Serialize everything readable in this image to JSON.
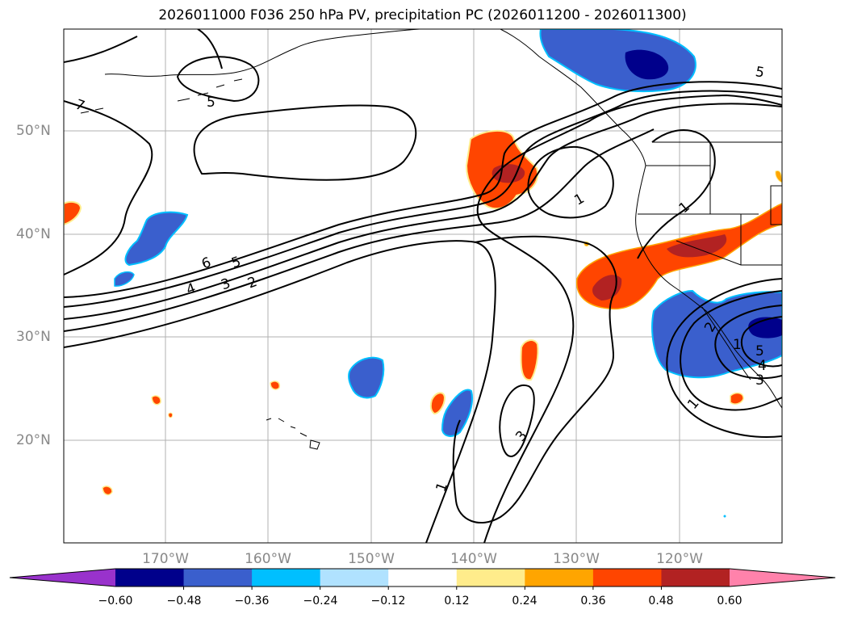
{
  "title": "2026011000 F036 250 hPa PV, precipitation PC (2026011200 - 2026011300)",
  "axes": {
    "lat_labels": [
      "50°N",
      "40°N",
      "30°N",
      "20°N"
    ],
    "lon_labels": [
      "170°W",
      "160°W",
      "150°W",
      "140°W",
      "130°W",
      "120°W"
    ]
  },
  "contour_labels": [
    "7",
    "5",
    "5",
    "6",
    "5",
    "4",
    "3",
    "2",
    "1",
    "1",
    "1",
    "3",
    "1",
    "2",
    "5",
    "4",
    "3",
    "1"
  ],
  "colorbar": {
    "ticks": [
      "−0.60",
      "−0.48",
      "−0.36",
      "−0.24",
      "−0.12",
      "0.12",
      "0.24",
      "0.36",
      "0.48",
      "0.60"
    ],
    "colors": [
      "#9932CC",
      "#00008B",
      "#3A5FCD",
      "#00BFFF",
      "#B0E2FF",
      "#FFFFFF",
      "#FFEC8B",
      "#FFA500",
      "#FF4500",
      "#B22222",
      "#FF82AB"
    ]
  }
}
